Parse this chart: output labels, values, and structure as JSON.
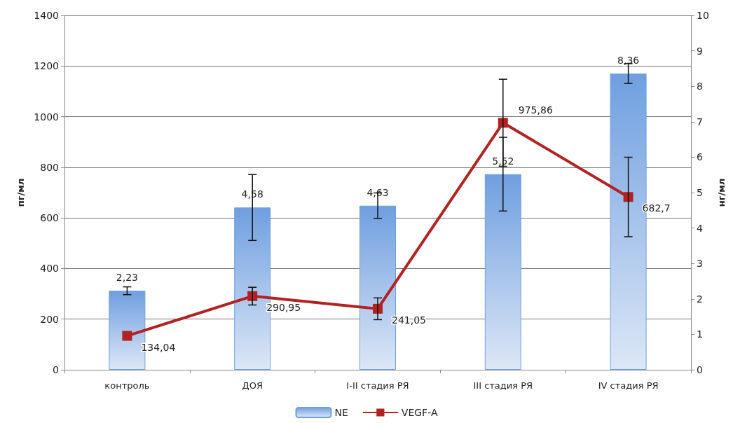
{
  "chart_data": {
    "type": "bar",
    "ylabel": "пг/мл",
    "y2label": "нг/мл",
    "categories": [
      "контроль",
      "ДОЯ",
      "I-II стадия РЯ",
      "III стадия РЯ",
      "IV стадия РЯ"
    ],
    "series": [
      {
        "name": "NE",
        "axis": "y2",
        "color": "#6f9fe0",
        "values": [
          2.23,
          4.58,
          4.63,
          5.52,
          8.36
        ],
        "errors": [
          0.11,
          0.93,
          0.36,
          1.04,
          0.28
        ],
        "value_labels": [
          "2,23",
          "4,58",
          "4,63",
          "5,52",
          "8,36"
        ]
      },
      {
        "name": "VEGF-A",
        "type": "line",
        "axis": "y",
        "color": "#b22222",
        "marker": "square",
        "values": [
          134.04,
          290.95,
          241.05,
          975.86,
          682.7
        ],
        "errors": [
          null,
          35,
          43,
          172,
          157
        ],
        "value_labels": [
          "134,04",
          "290,95",
          "241,05",
          "975,86",
          "682,7"
        ]
      }
    ],
    "ylim": [
      0,
      1400
    ],
    "yticks": [
      0,
      200,
      400,
      600,
      800,
      1000,
      1200,
      1400
    ],
    "y2lim": [
      0,
      10
    ],
    "y2ticks": [
      0,
      1,
      2,
      3,
      4,
      5,
      6,
      7,
      8,
      9,
      10
    ],
    "grid": "y",
    "legend": "bottom"
  }
}
